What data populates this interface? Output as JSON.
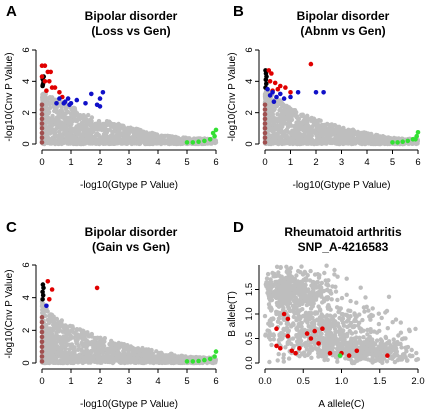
{
  "colors": {
    "gray": "#bebebe",
    "red": "#e00000",
    "blue": "#1010c8",
    "black": "#000000",
    "green": "#33e033",
    "brown": "#a05050"
  },
  "chart_data": [
    {
      "id": "A",
      "letter": "A",
      "type": "scatter",
      "title": [
        "Bipolar disorder",
        "(Loss vs Gen)"
      ],
      "xlabel": "-log10(Gtype P Value)",
      "ylabel": "-log10(Cnv P Value)",
      "xlim": [
        0,
        6
      ],
      "ylim": [
        0,
        6
      ],
      "xticks": [
        "0",
        "1",
        "2",
        "3",
        "4",
        "5",
        "6"
      ],
      "yticks": [
        "0",
        "2",
        "4",
        "6"
      ],
      "grid": false,
      "background_cloud": {
        "color": "gray",
        "outline": [
          [
            0,
            3.3
          ],
          [
            0.4,
            3.0
          ],
          [
            1.0,
            2.4
          ],
          [
            2.0,
            1.6
          ],
          [
            3.0,
            1.1
          ],
          [
            4.0,
            0.6
          ],
          [
            5.0,
            0.4
          ],
          [
            6.0,
            0.3
          ],
          [
            6.0,
            0.0
          ],
          [
            0,
            0
          ]
        ]
      },
      "series": [
        {
          "color": "brown",
          "x": [
            0,
            0,
            0,
            0,
            0,
            0,
            0,
            0,
            0
          ],
          "y": [
            0.1,
            0.4,
            0.7,
            1.0,
            1.3,
            1.6,
            1.9,
            2.2,
            2.5
          ]
        },
        {
          "color": "black",
          "x": [
            0.02,
            0.05,
            0.02,
            0.06,
            0.03
          ],
          "y": [
            3.7,
            3.95,
            4.15,
            4.3,
            3.8
          ]
        },
        {
          "color": "red",
          "x": [
            0.0,
            0.1,
            0.2,
            0.3,
            0.0,
            0.1,
            0.25,
            0.35,
            0.45,
            0.6,
            0.7,
            0.15
          ],
          "y": [
            5.0,
            5.0,
            4.6,
            4.6,
            4.3,
            4.0,
            4.0,
            3.6,
            3.6,
            3.3,
            3.0,
            3.4
          ]
        },
        {
          "color": "blue",
          "x": [
            0.5,
            0.6,
            0.75,
            0.9,
            1.0,
            1.2,
            1.5,
            1.7,
            2.0,
            2.1,
            1.9,
            0.8,
            0.95,
            2.0
          ],
          "y": [
            2.6,
            2.9,
            2.6,
            2.9,
            2.6,
            2.8,
            2.6,
            3.2,
            2.9,
            3.3,
            2.5,
            2.7,
            2.5,
            2.4
          ]
        },
        {
          "color": "green",
          "x": [
            5.0,
            5.2,
            5.4,
            5.6,
            5.8,
            5.95,
            5.9,
            6.0
          ],
          "y": [
            0.1,
            0.1,
            0.15,
            0.2,
            0.3,
            0.5,
            0.7,
            0.9
          ]
        }
      ]
    },
    {
      "id": "B",
      "letter": "B",
      "type": "scatter",
      "title": [
        "Bipolar disorder",
        "(Abnm vs Gen)"
      ],
      "xlabel": "-log10(Gtype P Value)",
      "ylabel": "-log10(Cnv P Value)",
      "xlim": [
        0,
        6
      ],
      "ylim": [
        0,
        6
      ],
      "xticks": [
        "0",
        "1",
        "2",
        "3",
        "4",
        "5",
        "6"
      ],
      "yticks": [
        "0",
        "2",
        "4",
        "6"
      ],
      "grid": false,
      "background_cloud": {
        "color": "gray",
        "outline": [
          [
            0,
            3.6
          ],
          [
            0.4,
            3.0
          ],
          [
            1.0,
            2.3
          ],
          [
            2.0,
            1.6
          ],
          [
            3.0,
            1.1
          ],
          [
            4.0,
            0.7
          ],
          [
            5.0,
            0.4
          ],
          [
            6.0,
            0.3
          ],
          [
            6.0,
            0.0
          ],
          [
            0,
            0
          ]
        ]
      },
      "series": [
        {
          "color": "brown",
          "x": [
            0,
            0,
            0,
            0,
            0,
            0,
            0,
            0,
            0
          ],
          "y": [
            0.1,
            0.4,
            0.7,
            1.0,
            1.3,
            1.6,
            1.9,
            2.2,
            2.5
          ]
        },
        {
          "color": "black",
          "x": [
            0.02,
            0.05,
            0.03,
            0.06,
            0.04,
            0.02
          ],
          "y": [
            3.6,
            3.85,
            4.1,
            4.3,
            4.5,
            4.7
          ]
        },
        {
          "color": "red",
          "x": [
            0.15,
            0.25,
            0.2,
            0.4,
            0.6,
            0.8,
            1.0,
            0.3,
            0.5,
            1.8
          ],
          "y": [
            4.7,
            4.5,
            4.0,
            3.9,
            3.7,
            3.6,
            3.3,
            3.4,
            3.5,
            5.1
          ]
        },
        {
          "color": "blue",
          "x": [
            0.1,
            0.2,
            0.3,
            0.45,
            0.6,
            0.75,
            1.0,
            1.3,
            2.0,
            2.3,
            0.35
          ],
          "y": [
            3.5,
            3.1,
            3.3,
            3.0,
            3.2,
            2.9,
            3.0,
            3.3,
            3.3,
            3.3,
            2.7
          ]
        },
        {
          "color": "green",
          "x": [
            5.0,
            5.2,
            5.4,
            5.6,
            5.8,
            5.95,
            6.0,
            5.9
          ],
          "y": [
            0.1,
            0.1,
            0.15,
            0.2,
            0.3,
            0.5,
            0.75,
            0.3
          ]
        }
      ]
    },
    {
      "id": "C",
      "letter": "C",
      "type": "scatter",
      "title": [
        "Bipolar disorder",
        "(Gain vs Gen)"
      ],
      "xlabel": "-log10(Gtype P Value)",
      "ylabel": "-log10(Cnv P Value)",
      "xlim": [
        0,
        6
      ],
      "ylim": [
        0,
        6
      ],
      "xticks": [
        "0",
        "1",
        "2",
        "3",
        "4",
        "5",
        "6"
      ],
      "yticks": [
        "0",
        "2",
        "4",
        "6"
      ],
      "grid": false,
      "background_cloud": {
        "color": "gray",
        "outline": [
          [
            0,
            3.8
          ],
          [
            0.3,
            3.0
          ],
          [
            1.0,
            2.3
          ],
          [
            2.0,
            1.6
          ],
          [
            3.0,
            1.1
          ],
          [
            4.0,
            0.7
          ],
          [
            5.0,
            0.4
          ],
          [
            6.0,
            0.3
          ],
          [
            6.0,
            0.0
          ],
          [
            0,
            0
          ]
        ]
      },
      "series": [
        {
          "color": "brown",
          "x": [
            0,
            0,
            0,
            0,
            0,
            0,
            0,
            0,
            0,
            0
          ],
          "y": [
            0.1,
            0.4,
            0.7,
            1.0,
            1.3,
            1.6,
            1.9,
            2.2,
            2.5,
            2.8
          ]
        },
        {
          "color": "black",
          "x": [
            0.02,
            0.04,
            0.02,
            0.05,
            0.03
          ],
          "y": [
            3.9,
            4.15,
            4.35,
            4.6,
            4.8
          ]
        },
        {
          "color": "red",
          "x": [
            0.2,
            0.35,
            0.25,
            1.9
          ],
          "y": [
            5.0,
            4.5,
            3.9,
            4.6
          ]
        },
        {
          "color": "blue",
          "x": [
            0.15
          ],
          "y": [
            3.5
          ]
        },
        {
          "color": "green",
          "x": [
            5.0,
            5.2,
            5.4,
            5.6,
            5.8,
            5.95,
            6.0
          ],
          "y": [
            0.1,
            0.1,
            0.12,
            0.18,
            0.25,
            0.4,
            0.7
          ]
        }
      ]
    },
    {
      "id": "D",
      "letter": "D",
      "type": "scatter",
      "title": [
        "Rheumatoid arthritis",
        "SNP_A-4216583"
      ],
      "xlabel": "A allele(C)",
      "ylabel": "B allele(T)",
      "xlim": [
        0,
        2
      ],
      "ylim": [
        0,
        2
      ],
      "xticks": [
        "0.0",
        "0.5",
        "1.0",
        "1.5",
        "2.0"
      ],
      "yticks": [
        "0.0",
        "0.5",
        "1.0",
        "1.5"
      ],
      "grid": false,
      "background_clusters": [
        {
          "cx": 0.35,
          "cy": 1.45,
          "sx": 0.28,
          "sy": 0.22,
          "n": 520
        },
        {
          "cx": 0.75,
          "cy": 0.6,
          "sx": 0.42,
          "sy": 0.28,
          "n": 520
        },
        {
          "cx": 1.3,
          "cy": 0.25,
          "sx": 0.3,
          "sy": 0.12,
          "n": 380
        }
      ],
      "series": [
        {
          "color": "red",
          "x": [
            0.25,
            0.15,
            0.3,
            0.2,
            0.45,
            0.55,
            0.65,
            0.75,
            0.4,
            0.7,
            0.85,
            1.0,
            1.1,
            1.2,
            0.35,
            0.6,
            1.6,
            0.15,
            0.3
          ],
          "y": [
            1.0,
            0.7,
            0.55,
            0.3,
            0.3,
            0.6,
            0.65,
            0.7,
            0.2,
            0.4,
            0.2,
            0.2,
            0.15,
            0.25,
            0.25,
            0.5,
            0.15,
            0.35,
            0.9
          ]
        },
        {
          "color": "green",
          "x": [
            0.98
          ],
          "y": [
            0.15
          ]
        }
      ]
    }
  ]
}
